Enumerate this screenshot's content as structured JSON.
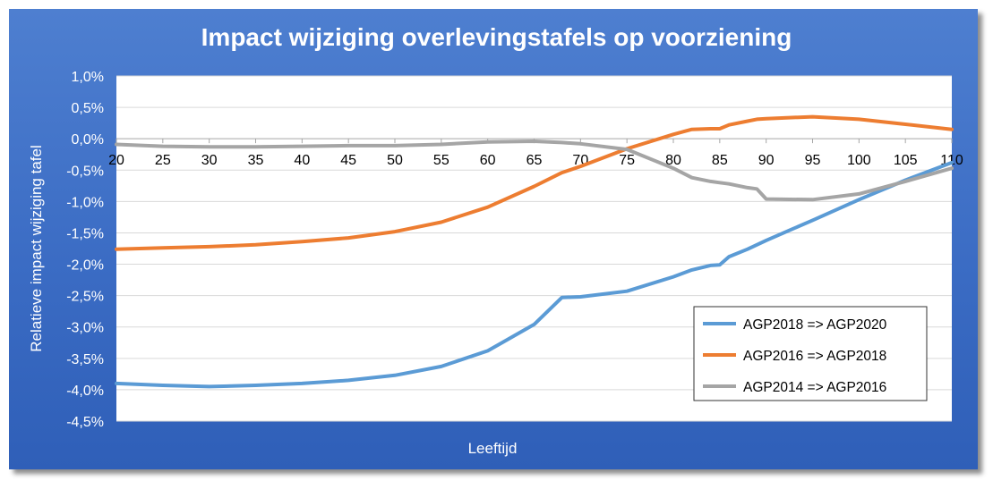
{
  "chart_data": {
    "type": "line",
    "title": "Impact wijziging overlevingstafels op voorziening",
    "xlabel": "Leeftijd",
    "ylabel": "Relatieve impact wijziging tafel",
    "xlim": [
      20,
      110
    ],
    "ylim": [
      -4.5,
      1.0
    ],
    "x_ticks": [
      20,
      25,
      30,
      35,
      40,
      45,
      50,
      55,
      60,
      65,
      70,
      75,
      80,
      85,
      90,
      95,
      100,
      105,
      110
    ],
    "y_ticks": [
      1.0,
      0.5,
      0.0,
      -0.5,
      -1.0,
      -1.5,
      -2.0,
      -2.5,
      -3.0,
      -3.5,
      -4.0,
      -4.5
    ],
    "y_tick_labels": [
      "1,0%",
      "0,5%",
      "0,0%",
      "-0,5%",
      "-1,0%",
      "-1,5%",
      "-2,0%",
      "-2,5%",
      "-3,0%",
      "-3,5%",
      "-4,0%",
      "-4,5%"
    ],
    "grid": "horizontal",
    "legend_position": "bottom-right",
    "x": [
      20,
      25,
      30,
      35,
      40,
      45,
      50,
      55,
      60,
      65,
      68,
      70,
      75,
      80,
      82,
      84,
      85,
      86,
      88,
      89,
      90,
      95,
      100,
      105,
      110
    ],
    "series": [
      {
        "name": "AGP2018 => AGP2020",
        "color": "#5b9bd5",
        "values": [
          -3.9,
          -3.93,
          -3.95,
          -3.93,
          -3.9,
          -3.85,
          -3.77,
          -3.63,
          -3.38,
          -2.96,
          -2.53,
          -2.52,
          -2.43,
          -2.2,
          -2.09,
          -2.02,
          -2.01,
          -1.88,
          -1.76,
          -1.69,
          -1.62,
          -1.3,
          -0.97,
          -0.66,
          -0.38
        ]
      },
      {
        "name": "AGP2016 => AGP2018",
        "color": "#ed7d31",
        "values": [
          -1.76,
          -1.74,
          -1.72,
          -1.69,
          -1.64,
          -1.58,
          -1.48,
          -1.33,
          -1.09,
          -0.76,
          -0.54,
          -0.44,
          -0.16,
          0.07,
          0.15,
          0.16,
          0.16,
          0.22,
          0.28,
          0.31,
          0.32,
          0.35,
          0.31,
          0.23,
          0.15
        ]
      },
      {
        "name": "AGP2014 => AGP2016",
        "color": "#a5a5a5",
        "values": [
          -0.09,
          -0.12,
          -0.13,
          -0.13,
          -0.12,
          -0.11,
          -0.11,
          -0.09,
          -0.05,
          -0.04,
          -0.06,
          -0.08,
          -0.17,
          -0.47,
          -0.62,
          -0.68,
          -0.7,
          -0.72,
          -0.78,
          -0.8,
          -0.96,
          -0.97,
          -0.88,
          -0.68,
          -0.47
        ]
      }
    ]
  }
}
